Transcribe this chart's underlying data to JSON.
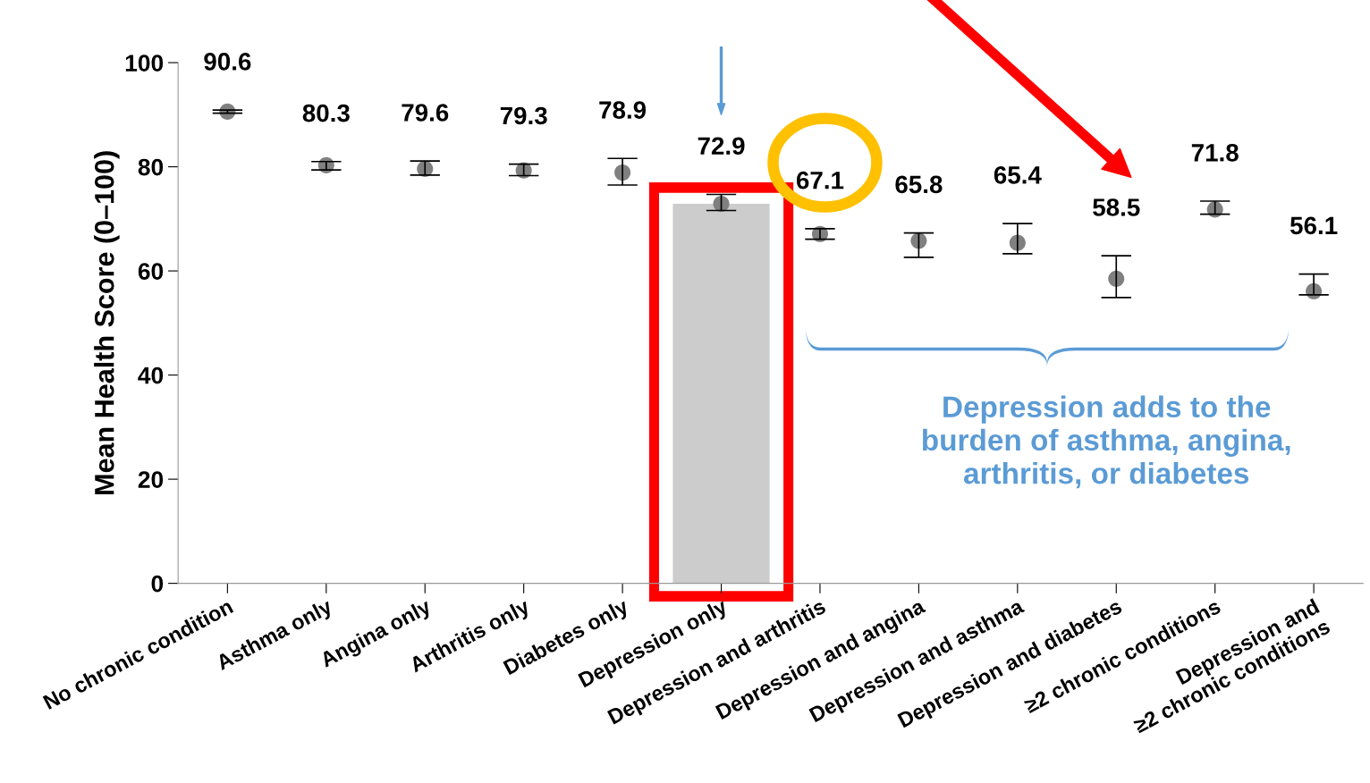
{
  "chart_data": {
    "type": "scatter",
    "ylabel": "Mean Health Score (0–100)",
    "categories": [
      "No chronic condition",
      "Asthma only",
      "Angina only",
      "Arthritis only",
      "Diabetes only",
      "Depression only",
      "Depression and arthritis",
      "Depression and angina",
      "Depression and asthma",
      "Depression and diabetes",
      "≥2 chronic conditions",
      "Depression and\n≥2 chronic conditions"
    ],
    "series": [
      {
        "type": "bar",
        "color": "#cccccc",
        "values": [
          null,
          null,
          null,
          null,
          null,
          72.9,
          null,
          null,
          null,
          null,
          null,
          null
        ]
      },
      {
        "color": "#808080",
        "value_labels": [
          "90.6",
          "80.3",
          "79.6",
          "79.3",
          "78.9",
          "72.9",
          "67.1",
          "65.8",
          "65.4",
          "58.5",
          "71.8",
          "56.1"
        ],
        "values": [
          90.6,
          80.3,
          79.6,
          79.3,
          78.9,
          72.9,
          67.1,
          65.8,
          65.4,
          58.5,
          71.8,
          56.1
        ],
        "errors": [
          [
            90.3,
            90.9
          ],
          [
            79.4,
            81.0
          ],
          [
            78.4,
            81.1
          ],
          [
            78.3,
            80.5
          ],
          [
            76.5,
            81.6
          ],
          [
            71.6,
            74.7
          ],
          [
            66.1,
            68.1
          ],
          [
            62.6,
            67.3
          ],
          [
            63.3,
            69.1
          ],
          [
            54.9,
            62.9
          ],
          [
            70.9,
            73.4
          ],
          [
            55.4,
            59.4
          ]
        ]
      }
    ],
    "ylim": [
      0,
      100
    ],
    "yticks": [
      0,
      20,
      40,
      60,
      80,
      100
    ],
    "marker": "circle",
    "grid": false,
    "annotations": [
      "Depression adds to the\nburden of asthma, angina,\narthritis, or diabetes"
    ]
  }
}
